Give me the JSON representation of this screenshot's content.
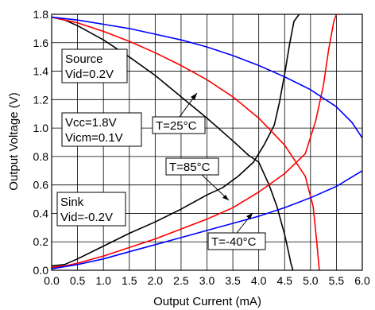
{
  "chart_data": {
    "type": "line",
    "title": "",
    "xlabel": "Output Current (mA)",
    "ylabel": "Output Voltage (V)",
    "xlim": [
      0,
      6
    ],
    "ylim": [
      0,
      1.8
    ],
    "xticks": [
      "0.0",
      "0.5",
      "1.0",
      "1.5",
      "2.0",
      "2.5",
      "3.0",
      "3.5",
      "4.0",
      "4.5",
      "5.0",
      "5.5",
      "6.0"
    ],
    "yticks": [
      "0.0",
      "0.2",
      "0.4",
      "0.6",
      "0.8",
      "1.0",
      "1.2",
      "1.4",
      "1.6",
      "1.8"
    ],
    "grid": true,
    "series": [
      {
        "color": "#000000",
        "name": "T=25°C source",
        "x": [
          0,
          0.25,
          0.5,
          1.0,
          1.5,
          2.0,
          2.5,
          3.0,
          3.5,
          3.8,
          4.0,
          4.2,
          4.35,
          4.5,
          4.58,
          4.62,
          4.66
        ],
        "y": [
          1.78,
          1.76,
          1.72,
          1.62,
          1.5,
          1.37,
          1.22,
          1.07,
          0.91,
          0.81,
          0.76,
          0.6,
          0.45,
          0.25,
          0.12,
          0.05,
          0
        ]
      },
      {
        "color": "#000000",
        "name": "T=25°C sink",
        "x": [
          0,
          0.25,
          0.5,
          1.0,
          1.5,
          2.0,
          2.5,
          3.0,
          3.3,
          3.6,
          3.9,
          4.1,
          4.3,
          4.4,
          4.5,
          4.6,
          4.68,
          4.78
        ],
        "y": [
          0.03,
          0.04,
          0.08,
          0.17,
          0.26,
          0.34,
          0.43,
          0.53,
          0.58,
          0.66,
          0.76,
          0.88,
          1.02,
          1.18,
          1.38,
          1.6,
          1.75,
          1.8
        ]
      },
      {
        "color": "#ff0000",
        "name": "T=85°C source",
        "x": [
          0,
          0.5,
          1.0,
          1.5,
          2.0,
          2.5,
          3.0,
          3.5,
          4.0,
          4.5,
          4.9,
          5.05,
          5.12,
          5.15,
          5.17
        ],
        "y": [
          1.78,
          1.74,
          1.68,
          1.61,
          1.53,
          1.44,
          1.34,
          1.22,
          1.07,
          0.88,
          0.66,
          0.45,
          0.2,
          0.08,
          0
        ]
      },
      {
        "color": "#ff0000",
        "name": "T=85°C sink",
        "x": [
          0,
          0.25,
          0.5,
          1.0,
          1.5,
          2.0,
          2.5,
          3.0,
          3.5,
          4.0,
          4.5,
          4.9,
          5.1,
          5.25,
          5.35,
          5.45,
          5.5
        ],
        "y": [
          0.02,
          0.03,
          0.05,
          0.1,
          0.16,
          0.22,
          0.29,
          0.36,
          0.44,
          0.55,
          0.68,
          0.82,
          1.05,
          1.3,
          1.55,
          1.75,
          1.8
        ]
      },
      {
        "color": "#0000ff",
        "name": "T=-40°C source",
        "x": [
          0,
          0.5,
          1.0,
          1.5,
          2.0,
          2.5,
          3.0,
          3.5,
          4.0,
          4.5,
          5.0,
          5.5,
          5.8,
          6.0
        ],
        "y": [
          1.78,
          1.76,
          1.73,
          1.7,
          1.66,
          1.62,
          1.57,
          1.51,
          1.44,
          1.36,
          1.27,
          1.15,
          1.04,
          0.93
        ]
      },
      {
        "color": "#0000ff",
        "name": "T=-40°C sink",
        "x": [
          0,
          0.5,
          1.0,
          1.5,
          2.0,
          2.5,
          3.0,
          3.5,
          4.0,
          4.5,
          5.0,
          5.5,
          6.0
        ],
        "y": [
          0.01,
          0.04,
          0.08,
          0.13,
          0.18,
          0.23,
          0.28,
          0.33,
          0.38,
          0.44,
          0.51,
          0.59,
          0.7
        ]
      }
    ],
    "annotations": [
      {
        "lines": [
          "Source",
          "Vid=0.2V"
        ]
      },
      {
        "lines": [
          "Vcc=1.8V",
          "Vicm=0.1V"
        ]
      },
      {
        "lines": [
          "Sink",
          "Vid=-0.2V"
        ]
      },
      {
        "lines": [
          "T=25°C"
        ]
      },
      {
        "lines": [
          "T=85°C"
        ]
      },
      {
        "lines": [
          "T=-40°C"
        ]
      }
    ]
  }
}
